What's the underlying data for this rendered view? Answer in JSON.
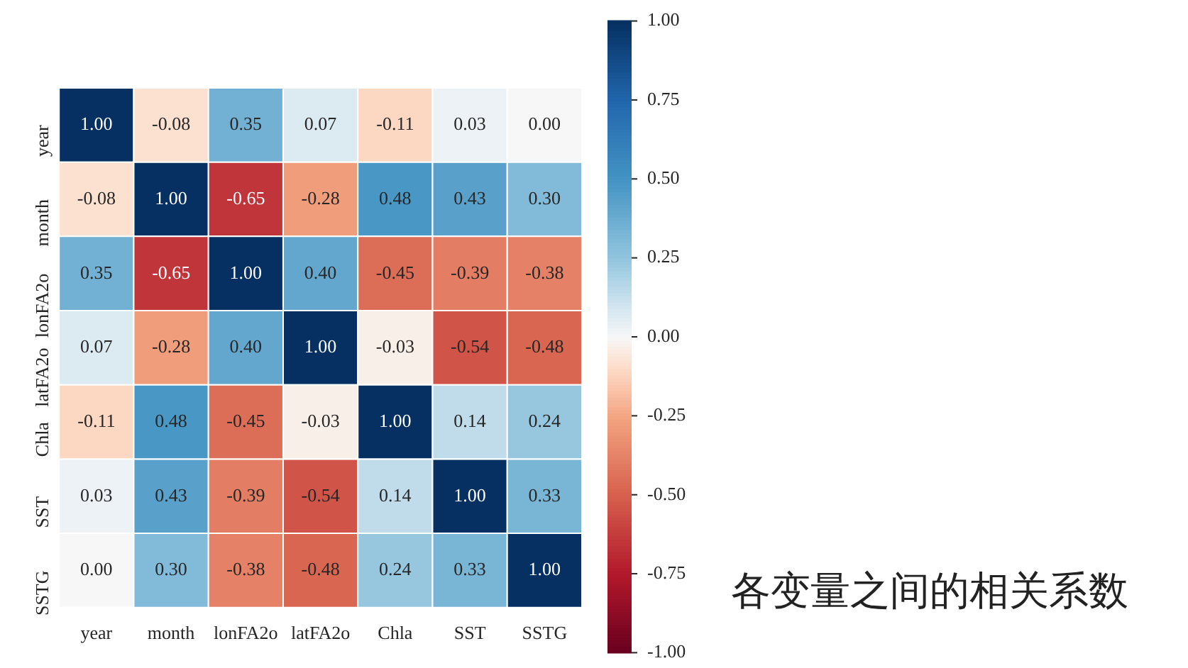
{
  "chart_data": {
    "type": "heatmap",
    "categories": [
      "year",
      "month",
      "lonFA2o",
      "latFA2o",
      "Chla",
      "SST",
      "SSTG"
    ],
    "y_categories": [
      "year",
      "month",
      "lonFA2o",
      "latFA2o",
      "Chla",
      "SST",
      "SSTG"
    ],
    "cells": [
      [
        1.0,
        -0.08,
        0.35,
        0.07,
        -0.11,
        0.03,
        0.0
      ],
      [
        -0.08,
        1.0,
        -0.65,
        -0.28,
        0.48,
        0.43,
        0.3
      ],
      [
        0.35,
        -0.65,
        1.0,
        0.4,
        -0.45,
        -0.39,
        -0.38
      ],
      [
        0.07,
        -0.28,
        0.4,
        1.0,
        -0.03,
        -0.54,
        -0.48
      ],
      [
        -0.11,
        0.48,
        -0.45,
        -0.03,
        1.0,
        0.14,
        0.24
      ],
      [
        0.03,
        0.43,
        -0.39,
        -0.54,
        0.14,
        1.0,
        0.33
      ],
      [
        0.0,
        0.3,
        -0.38,
        -0.48,
        0.24,
        0.33,
        1.0
      ]
    ],
    "cell_labels": [
      [
        "1.00",
        "-0.08",
        "0.35",
        "0.07",
        "-0.11",
        "0.03",
        "0.00"
      ],
      [
        "-0.08",
        "1.00",
        "-0.65",
        "-0.28",
        "0.48",
        "0.43",
        "0.30"
      ],
      [
        "0.35",
        "-0.65",
        "1.00",
        "0.40",
        "-0.45",
        "-0.39",
        "-0.38"
      ],
      [
        "0.07",
        "-0.28",
        "0.40",
        "1.00",
        "-0.03",
        "-0.54",
        "-0.48"
      ],
      [
        "-0.11",
        "0.48",
        "-0.45",
        "-0.03",
        "1.00",
        "0.14",
        "0.24"
      ],
      [
        "0.03",
        "0.43",
        "-0.39",
        "-0.54",
        "0.14",
        "1.00",
        "0.33"
      ],
      [
        "0.00",
        "0.30",
        "-0.38",
        "-0.48",
        "0.24",
        "0.33",
        "1.00"
      ]
    ],
    "clim": [
      -1,
      1
    ],
    "cticks": [
      {
        "value": -1,
        "label": "-1.00"
      },
      {
        "value": -0.75,
        "label": "-0.75"
      },
      {
        "value": -0.5,
        "label": "-0.50"
      },
      {
        "value": -0.25,
        "label": "-0.25"
      },
      {
        "value": 0,
        "label": "0.00"
      },
      {
        "value": 0.25,
        "label": "0.25"
      },
      {
        "value": 0.5,
        "label": "0.50"
      },
      {
        "value": 0.75,
        "label": "0.75"
      },
      {
        "value": 1,
        "label": "1.00"
      }
    ],
    "annotations": [
      "各变量之间的相关系数"
    ]
  }
}
